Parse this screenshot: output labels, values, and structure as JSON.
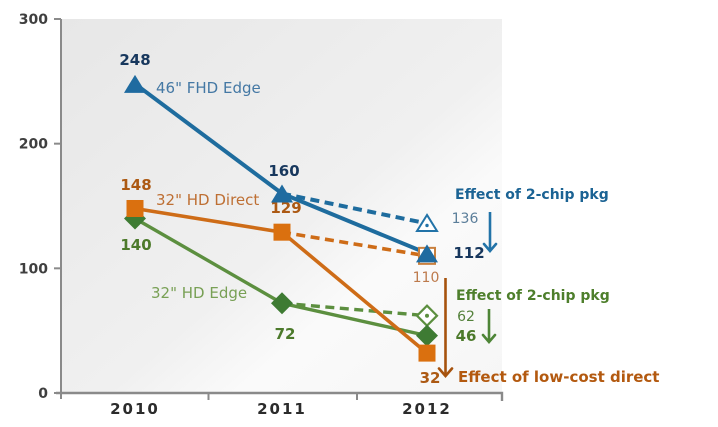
{
  "chart_data": {
    "type": "line",
    "title": "",
    "xlabel": "",
    "ylabel": "",
    "x": [
      "2010",
      "2011",
      "2012"
    ],
    "y_ticks": [
      "0",
      "100",
      "200",
      "300"
    ],
    "ylim": [
      0,
      300
    ],
    "grid": false,
    "legend_position": "inline-labels",
    "series": [
      {
        "name": "46\" FHD Edge",
        "color": "blue",
        "marker": "triangle",
        "values": [
          248,
          160,
          112
        ],
        "effect_branch": {
          "from": "2011",
          "to": "2012",
          "value": 136,
          "style": "dashed",
          "marker": "open-triangle"
        }
      },
      {
        "name": "32\" HD Direct",
        "color": "orange",
        "marker": "square",
        "values": [
          148,
          129,
          32
        ],
        "effect_branch": {
          "from": "2011",
          "to": "2012",
          "value": 110,
          "style": "dashed",
          "marker": "open-square"
        }
      },
      {
        "name": "32\" HD Edge",
        "color": "green",
        "marker": "diamond",
        "values": [
          140,
          72,
          46
        ],
        "effect_branch": {
          "from": "2011",
          "to": "2012",
          "value": 62,
          "style": "dashed",
          "marker": "open-diamond"
        }
      }
    ],
    "annotations": [
      {
        "id": "effect-2chip-blue",
        "text": "Effect of 2-chip pkg",
        "color": "blue",
        "arrow": "down"
      },
      {
        "id": "effect-2chip-green",
        "text": "Effect of 2-chip pkg",
        "color": "green",
        "arrow": "down"
      },
      {
        "id": "effect-lowcost-orange",
        "text": "Effect of low-cost direct",
        "color": "orange",
        "arrow": "down"
      }
    ]
  },
  "colors": {
    "blue": {
      "line": "#1E6C9E",
      "marker": "#1F6BA0",
      "label_bold": "#17375D",
      "series_name": "#4478A4",
      "light_value": "#5B7E9A",
      "effect_text": "#1B6394",
      "arrow": "#2273A8"
    },
    "orange": {
      "line": "#CE6C17",
      "marker": "#DA700F",
      "label_bold": "#AC5913",
      "series_name": "#BE6F33",
      "light_value": "#BD7A4C",
      "effect_text": "#B3590F",
      "arrow": "#A6520D"
    },
    "green": {
      "line": "#5C8F3F",
      "marker": "#3E7B33",
      "label_bold": "#4C7A2B",
      "series_name": "#78A055",
      "light_value": "#53813A",
      "effect_text": "#4E7F2C",
      "arrow": "#4E8537"
    },
    "axis": "#8A8A8A",
    "y_tick_label": "#3F3F3F",
    "x_tick_label": "#2B2B2B",
    "plot_bg_top": "#E7E7E7",
    "plot_bg_bottom": "#F6F6F6"
  }
}
